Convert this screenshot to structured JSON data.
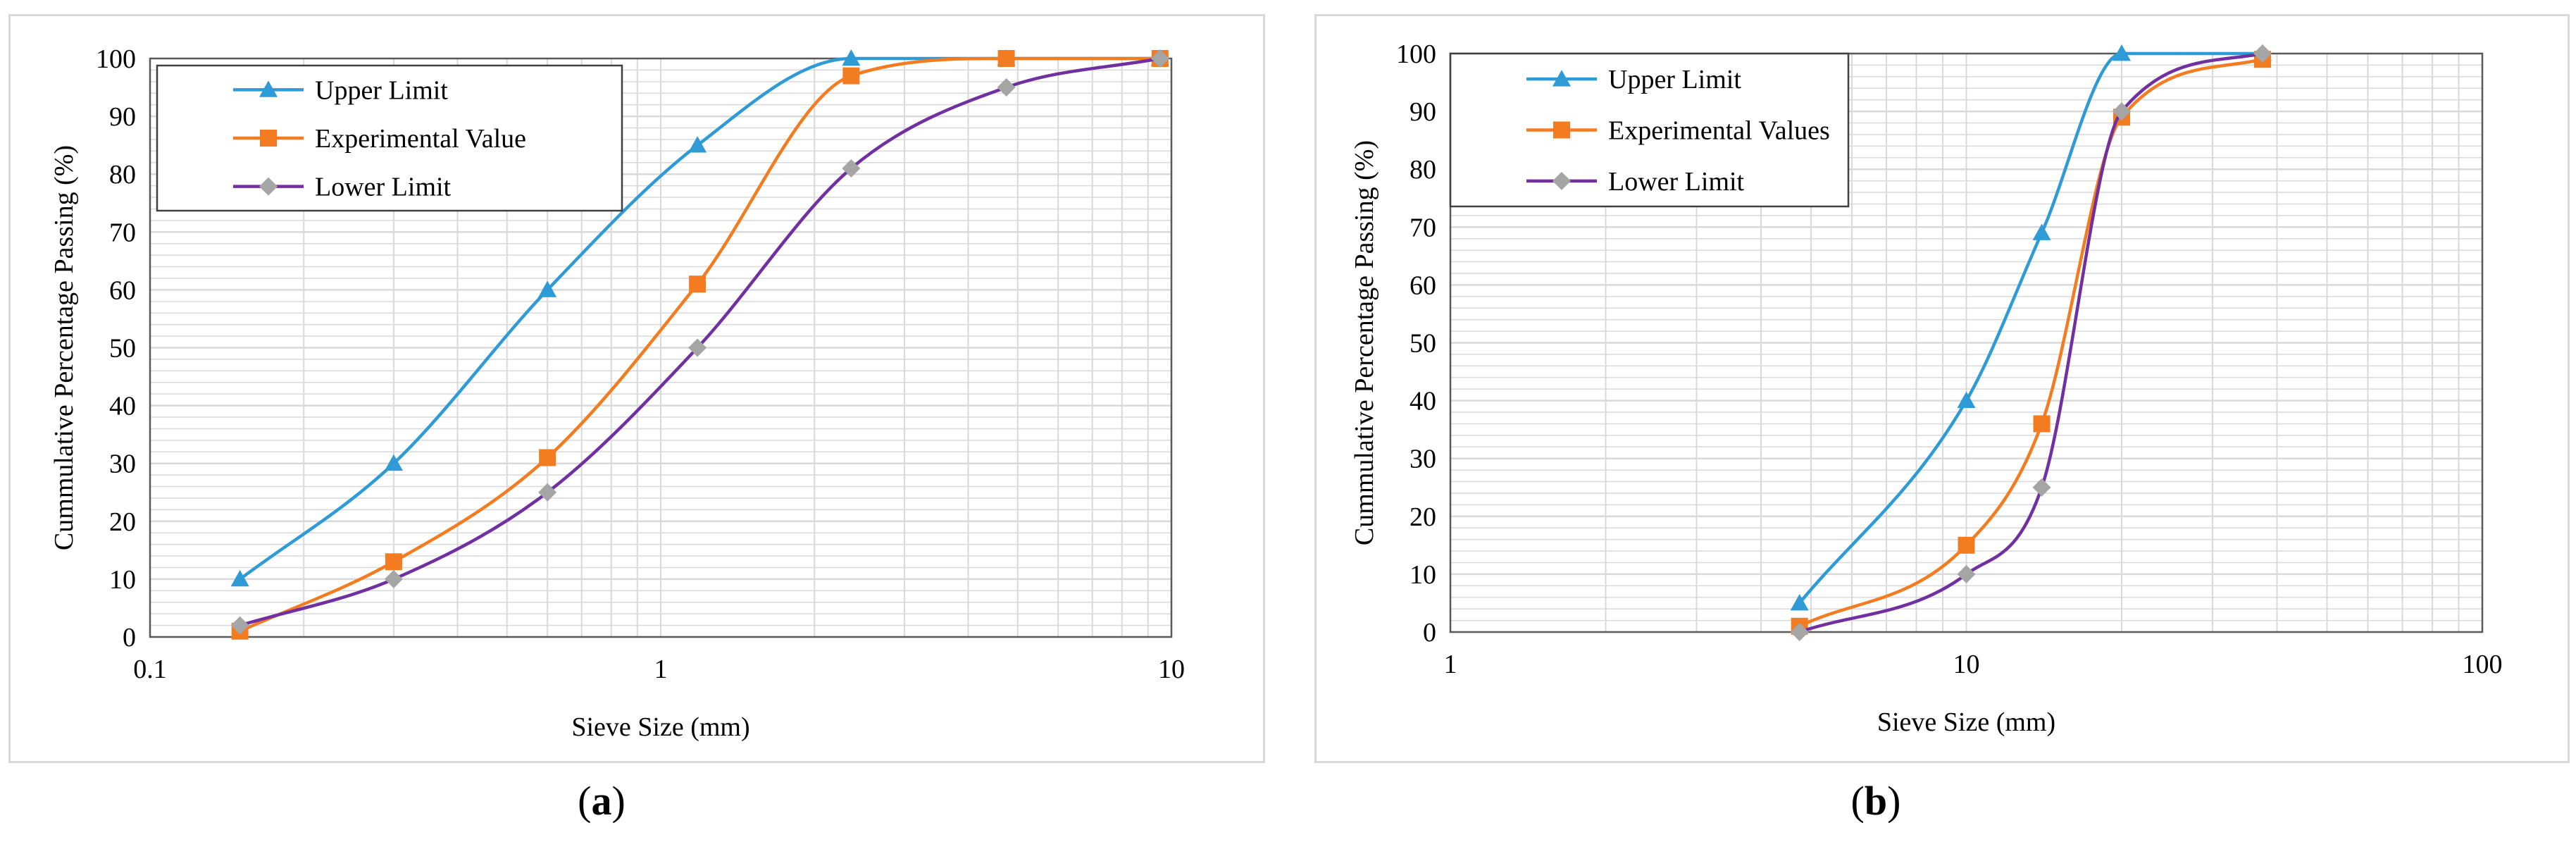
{
  "chart_data": [
    {
      "type": "line",
      "panel": "a",
      "xlabel": "Sieve Size (mm)",
      "ylabel": "Cummulative Percentage Passing (%)",
      "x_scale": "log",
      "xlim": [
        0.1,
        10
      ],
      "ylim": [
        0,
        100
      ],
      "x_ticks": [
        "0.1",
        "1",
        "10"
      ],
      "y_ticks": [
        "0",
        "10",
        "20",
        "30",
        "40",
        "50",
        "60",
        "70",
        "80",
        "90",
        "100"
      ],
      "grid": true,
      "legend_placement": "top-left",
      "series": [
        {
          "name": "Upper Limit",
          "color": "#2e9bd6",
          "marker": "triangle",
          "x": [
            0.15,
            0.3,
            0.6,
            1.18,
            2.36,
            4.75,
            9.5
          ],
          "y": [
            10,
            30,
            60,
            85,
            100,
            100,
            100
          ]
        },
        {
          "name": "Experimental Value",
          "color": "#f47c20",
          "marker": "square",
          "x": [
            0.15,
            0.3,
            0.6,
            1.18,
            2.36,
            4.75,
            9.5
          ],
          "y": [
            1,
            13,
            31,
            61,
            97,
            100,
            100
          ]
        },
        {
          "name": "Lower Limit",
          "color": "#7030a0",
          "marker": "diamond",
          "x": [
            0.15,
            0.3,
            0.6,
            1.18,
            2.36,
            4.75,
            9.5
          ],
          "y": [
            2,
            10,
            25,
            50,
            81,
            95,
            100
          ]
        }
      ]
    },
    {
      "type": "line",
      "panel": "b",
      "xlabel": "Sieve Size (mm)",
      "ylabel": "Cummulative Percentage Passing (%)",
      "x_scale": "log",
      "xlim": [
        1,
        100
      ],
      "ylim": [
        0,
        100
      ],
      "x_ticks": [
        "1",
        "10",
        "100"
      ],
      "y_ticks": [
        "0",
        "10",
        "20",
        "30",
        "40",
        "50",
        "60",
        "70",
        "80",
        "90",
        "100"
      ],
      "grid": true,
      "legend_placement": "top-left",
      "series": [
        {
          "name": "Upper Limit",
          "color": "#2e9bd6",
          "marker": "triangle",
          "x": [
            4.75,
            10,
            14,
            20,
            37.5
          ],
          "y": [
            5,
            40,
            69,
            100,
            100
          ]
        },
        {
          "name": "Experimental Values",
          "color": "#f47c20",
          "marker": "square",
          "x": [
            4.75,
            10,
            14,
            20,
            37.5
          ],
          "y": [
            1,
            15,
            36,
            89,
            99
          ]
        },
        {
          "name": "Lower Limit",
          "color": "#7030a0",
          "marker": "diamond",
          "x": [
            4.75,
            10,
            14,
            20,
            37.5
          ],
          "y": [
            0,
            10,
            25,
            90,
            100
          ]
        }
      ]
    }
  ],
  "captions": [
    "(a)",
    "(b)"
  ],
  "colors": {
    "marker_diamond_fill": "#a5a5a5",
    "grid": "#d9d9d9",
    "axis": "#595959"
  }
}
